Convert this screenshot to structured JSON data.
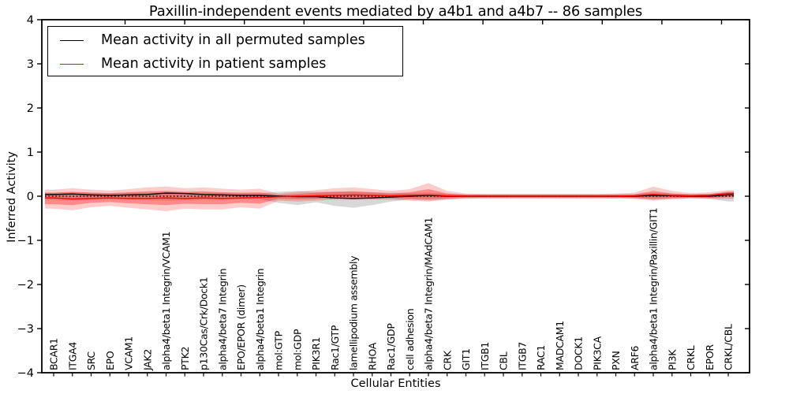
{
  "chart_data": {
    "type": "line",
    "title": "Paxillin-independent events mediated by a4b1 and a4b7 -- 86 samples",
    "xlabel": "Cellular Entities",
    "ylabel": "Inferred Activity",
    "ylim": [
      -4,
      4
    ],
    "yticks": [
      -4,
      -3,
      -2,
      -1,
      0,
      1,
      2,
      3,
      4
    ],
    "grid": false,
    "legend_position": "upper left",
    "zero_line_style": "dotted",
    "categories": [
      "BCAR1",
      "ITGA4",
      "SRC",
      "EPO",
      "VCAM1",
      "JAK2",
      "alpha4/beta1 Integrin/VCAM1",
      "PTK2",
      "p130Cas/Crk/Dock1",
      "alpha4/beta7 Integrin",
      "EPO/EPOR (dimer)",
      "alpha4/beta1 Integrin",
      "mol:GTP",
      "mol:GDP",
      "PIK3R1",
      "Rac1/GTP",
      "lamellipodium assembly",
      "RHOA",
      "Rac1/GDP",
      "cell adhesion",
      "alpha4/beta7 Integrin/MAdCAM1",
      "CRK",
      "GIT1",
      "ITGB1",
      "CBL",
      "ITGB7",
      "RAC1",
      "MADCAM1",
      "DOCK1",
      "PIK3CA",
      "PXN",
      "ARF6",
      "alpha4/beta1 Integrin/Paxillin/GIT1",
      "PI3K",
      "CRKL",
      "EPOR",
      "CRKL/CBL"
    ],
    "series": [
      {
        "name": "Mean activity in all permuted samples",
        "color": "#000000",
        "style": "solid",
        "values": [
          0.04,
          0.05,
          0.03,
          0.02,
          0.03,
          0.04,
          0.07,
          0.06,
          0.04,
          0.03,
          0.02,
          0.02,
          0.0,
          -0.01,
          -0.01,
          -0.04,
          -0.05,
          -0.04,
          -0.02,
          0.0,
          0.02,
          0.0,
          0.0,
          0.0,
          0.0,
          0.0,
          0.0,
          0.0,
          0.0,
          0.0,
          0.0,
          0.0,
          0.02,
          0.01,
          0.0,
          0.0,
          0.03
        ]
      },
      {
        "name": "Mean activity in patient samples",
        "color": "#ff0000",
        "style": "solid",
        "values": [
          -0.04,
          -0.06,
          -0.05,
          -0.04,
          -0.05,
          -0.05,
          -0.04,
          -0.05,
          -0.04,
          -0.05,
          -0.04,
          -0.03,
          -0.01,
          0.0,
          0.01,
          0.02,
          0.03,
          0.02,
          0.01,
          0.02,
          0.03,
          0.01,
          0.0,
          0.0,
          0.0,
          0.0,
          0.0,
          0.0,
          0.0,
          0.0,
          0.0,
          0.01,
          0.04,
          0.02,
          0.01,
          0.02,
          0.06
        ]
      }
    ],
    "bands": [
      {
        "name": "permuted samples range",
        "color": "#999999",
        "opacity": 0.38,
        "upper": [
          0.08,
          0.09,
          0.08,
          0.07,
          0.08,
          0.08,
          0.1,
          0.09,
          0.08,
          0.08,
          0.07,
          0.07,
          0.1,
          0.12,
          0.1,
          0.1,
          0.1,
          0.09,
          0.08,
          0.07,
          0.08,
          0.06,
          0.05,
          0.05,
          0.05,
          0.05,
          0.05,
          0.05,
          0.05,
          0.05,
          0.05,
          0.05,
          0.08,
          0.06,
          0.05,
          0.05,
          0.1
        ],
        "lower": [
          -0.08,
          -0.09,
          -0.08,
          -0.07,
          -0.08,
          -0.08,
          -0.1,
          -0.09,
          -0.08,
          -0.08,
          -0.07,
          -0.07,
          -0.15,
          -0.2,
          -0.14,
          -0.22,
          -0.26,
          -0.2,
          -0.12,
          -0.08,
          -0.1,
          -0.07,
          -0.05,
          -0.05,
          -0.05,
          -0.05,
          -0.05,
          -0.05,
          -0.05,
          -0.05,
          -0.05,
          -0.05,
          -0.08,
          -0.06,
          -0.05,
          -0.06,
          -0.12
        ]
      },
      {
        "name": "patient samples outer range",
        "color": "#ff0000",
        "opacity": 0.2,
        "upper": [
          0.15,
          0.18,
          0.15,
          0.13,
          0.16,
          0.2,
          0.22,
          0.18,
          0.2,
          0.17,
          0.15,
          0.17,
          0.06,
          0.1,
          0.14,
          0.18,
          0.2,
          0.16,
          0.12,
          0.16,
          0.3,
          0.12,
          0.06,
          0.05,
          0.05,
          0.05,
          0.05,
          0.05,
          0.05,
          0.05,
          0.06,
          0.08,
          0.22,
          0.12,
          0.07,
          0.09,
          0.14
        ],
        "lower": [
          -0.28,
          -0.32,
          -0.25,
          -0.22,
          -0.26,
          -0.3,
          -0.34,
          -0.28,
          -0.3,
          -0.3,
          -0.25,
          -0.28,
          -0.1,
          -0.12,
          -0.1,
          -0.08,
          -0.08,
          -0.08,
          -0.08,
          -0.1,
          -0.12,
          -0.08,
          -0.06,
          -0.05,
          -0.05,
          -0.05,
          -0.05,
          -0.05,
          -0.05,
          -0.05,
          -0.05,
          -0.06,
          -0.1,
          -0.07,
          -0.05,
          -0.06,
          -0.06
        ]
      },
      {
        "name": "patient samples inner range",
        "color": "#ff0000",
        "opacity": 0.32,
        "upper": [
          0.08,
          0.1,
          0.08,
          0.07,
          0.09,
          0.11,
          0.12,
          0.1,
          0.11,
          0.09,
          0.08,
          0.09,
          0.03,
          0.05,
          0.08,
          0.1,
          0.11,
          0.09,
          0.06,
          0.09,
          0.16,
          0.06,
          0.03,
          0.03,
          0.03,
          0.03,
          0.03,
          0.03,
          0.03,
          0.03,
          0.03,
          0.04,
          0.12,
          0.06,
          0.04,
          0.05,
          0.1
        ],
        "lower": [
          -0.18,
          -0.2,
          -0.15,
          -0.13,
          -0.16,
          -0.18,
          -0.2,
          -0.17,
          -0.18,
          -0.18,
          -0.15,
          -0.17,
          -0.06,
          -0.07,
          -0.06,
          -0.05,
          -0.05,
          -0.05,
          -0.05,
          -0.06,
          -0.07,
          -0.05,
          -0.03,
          -0.03,
          -0.03,
          -0.03,
          -0.03,
          -0.03,
          -0.03,
          -0.03,
          -0.03,
          -0.04,
          -0.06,
          -0.04,
          -0.03,
          -0.04,
          -0.02
        ]
      }
    ]
  }
}
